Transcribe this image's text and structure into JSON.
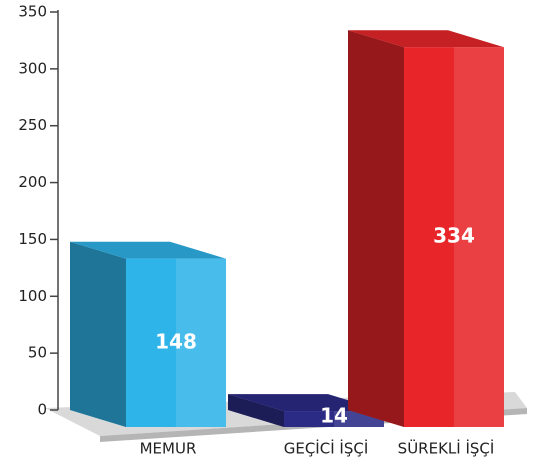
{
  "chart_data": {
    "type": "bar3d",
    "categories": [
      "MEMUR",
      "GEÇİCİ İŞÇİ",
      "SÜREKLİ İŞÇİ"
    ],
    "values": [
      148,
      14,
      334
    ],
    "colors": [
      "#2fb4ea",
      "#2b2b86",
      "#e8262a"
    ],
    "ylim": [
      0,
      350
    ],
    "yticks": [
      0,
      50,
      100,
      150,
      200,
      250,
      300,
      350
    ]
  }
}
